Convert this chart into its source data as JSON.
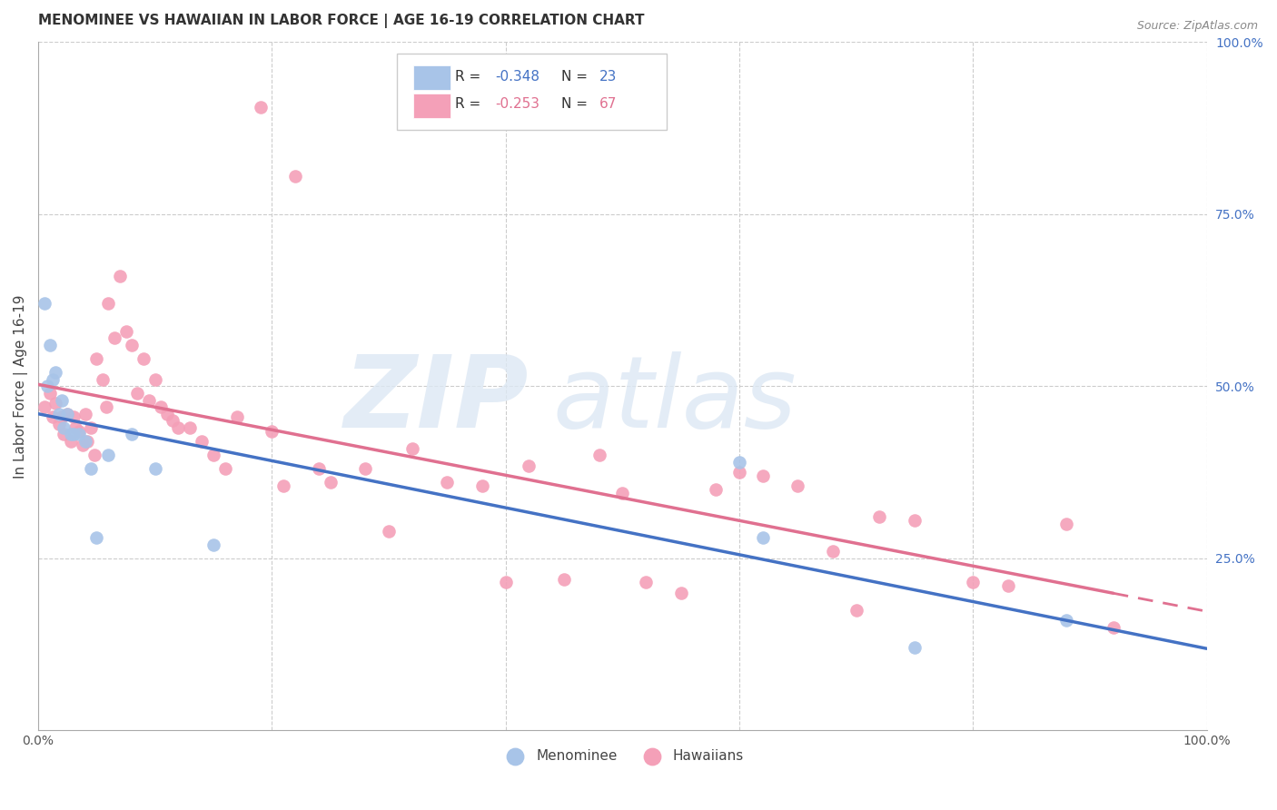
{
  "title": "MENOMINEE VS HAWAIIAN IN LABOR FORCE | AGE 16-19 CORRELATION CHART",
  "source": "Source: ZipAtlas.com",
  "ylabel": "In Labor Force | Age 16-19",
  "xlim": [
    0,
    1
  ],
  "ylim": [
    0,
    1
  ],
  "menominee_color": "#a8c4e8",
  "hawaiian_color": "#f4a0b8",
  "regression_menominee_color": "#4472c4",
  "regression_hawaiian_color": "#e07090",
  "background_color": "#ffffff",
  "grid_color": "#cccccc",
  "watermark_color": "#dde8f4",
  "right_axis_color": "#4472c4",
  "men_x": [
    0.005,
    0.008,
    0.01,
    0.012,
    0.015,
    0.018,
    0.02,
    0.022,
    0.025,
    0.028,
    0.03,
    0.035,
    0.04,
    0.045,
    0.05,
    0.06,
    0.08,
    0.1,
    0.15,
    0.6,
    0.62,
    0.75,
    0.88
  ],
  "men_y": [
    0.62,
    0.5,
    0.56,
    0.51,
    0.52,
    0.46,
    0.48,
    0.44,
    0.46,
    0.43,
    0.43,
    0.43,
    0.42,
    0.38,
    0.28,
    0.4,
    0.43,
    0.38,
    0.27,
    0.39,
    0.28,
    0.12,
    0.16
  ],
  "haw_x": [
    0.005,
    0.01,
    0.012,
    0.015,
    0.018,
    0.02,
    0.022,
    0.025,
    0.028,
    0.03,
    0.032,
    0.035,
    0.038,
    0.04,
    0.042,
    0.045,
    0.048,
    0.05,
    0.055,
    0.058,
    0.06,
    0.065,
    0.07,
    0.075,
    0.08,
    0.085,
    0.09,
    0.095,
    0.1,
    0.105,
    0.11,
    0.115,
    0.12,
    0.13,
    0.14,
    0.15,
    0.16,
    0.17,
    0.19,
    0.2,
    0.21,
    0.22,
    0.24,
    0.25,
    0.28,
    0.3,
    0.32,
    0.35,
    0.38,
    0.4,
    0.42,
    0.45,
    0.48,
    0.5,
    0.52,
    0.55,
    0.58,
    0.6,
    0.62,
    0.65,
    0.68,
    0.7,
    0.72,
    0.75,
    0.8,
    0.83,
    0.88,
    0.92
  ],
  "haw_y": [
    0.47,
    0.49,
    0.455,
    0.475,
    0.445,
    0.455,
    0.43,
    0.46,
    0.42,
    0.455,
    0.44,
    0.435,
    0.415,
    0.46,
    0.42,
    0.44,
    0.4,
    0.54,
    0.51,
    0.47,
    0.62,
    0.57,
    0.66,
    0.58,
    0.56,
    0.49,
    0.54,
    0.48,
    0.51,
    0.47,
    0.46,
    0.45,
    0.44,
    0.44,
    0.42,
    0.4,
    0.38,
    0.455,
    0.905,
    0.435,
    0.355,
    0.805,
    0.38,
    0.36,
    0.38,
    0.29,
    0.41,
    0.36,
    0.355,
    0.215,
    0.385,
    0.22,
    0.4,
    0.345,
    0.215,
    0.2,
    0.35,
    0.375,
    0.37,
    0.355,
    0.26,
    0.175,
    0.31,
    0.305,
    0.215,
    0.21,
    0.3,
    0.15
  ],
  "legend_r1_color": "#4472c4",
  "legend_r2_color": "#e07090"
}
